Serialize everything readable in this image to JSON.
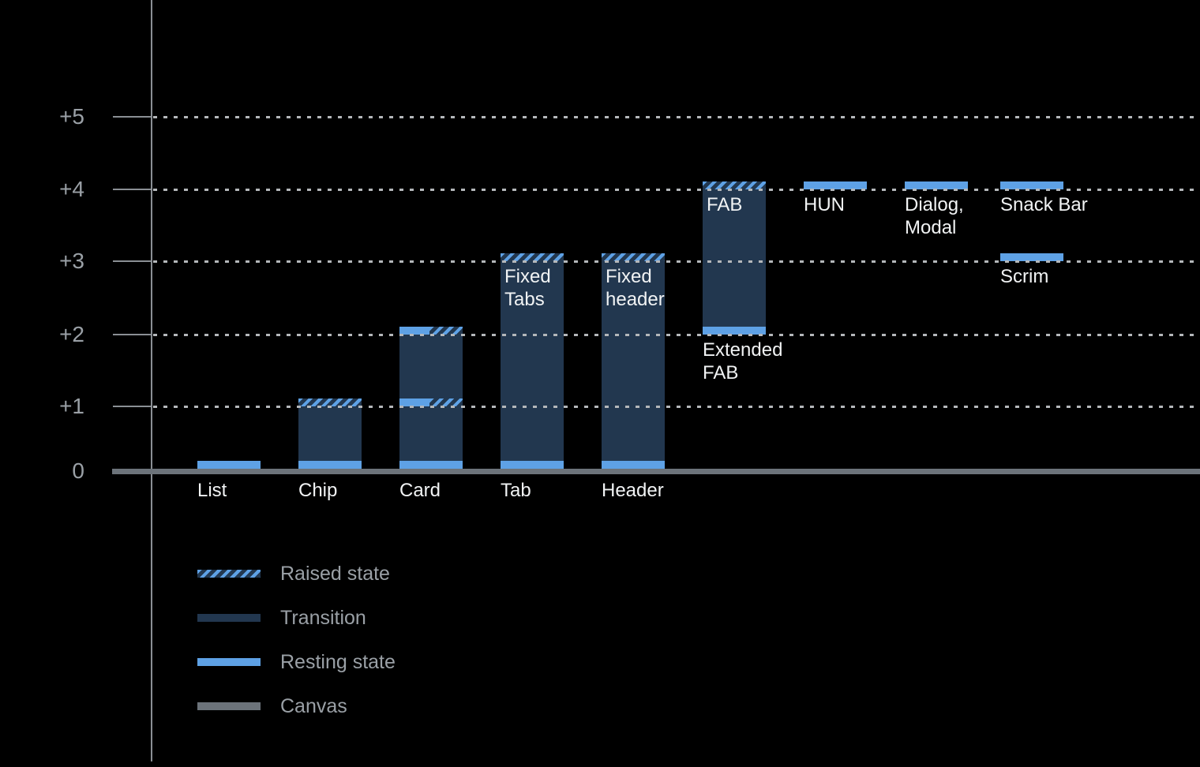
{
  "colors": {
    "bg": "#000000",
    "resting": "#5EA1E5",
    "transition": "#22374F",
    "canvas": "#6C737A",
    "axis": "#8A8F94",
    "grid": "#B4B7BA",
    "muted": "#9AA0A6",
    "label": "#F1F3F4"
  },
  "chart_data": {
    "type": "bar",
    "title": "",
    "xlabel": "",
    "ylabel": "",
    "ylim": [
      0,
      5.5
    ],
    "grid": "dotted horizontal lines at each elevation level, drawn over bars",
    "legend_position": "bottom-left",
    "y_ticks": [
      {
        "label": "+5",
        "value": 5
      },
      {
        "label": "+4",
        "value": 4
      },
      {
        "label": "+3",
        "value": 3
      },
      {
        "label": "+2",
        "value": 2
      },
      {
        "label": "+1",
        "value": 1
      },
      {
        "label": "0",
        "value": 0
      }
    ],
    "legend": [
      {
        "label": "Raised state",
        "style": "raised"
      },
      {
        "label": "Transition",
        "style": "transition"
      },
      {
        "label": "Resting state",
        "style": "resting"
      },
      {
        "label": "Canvas",
        "style": "canvas"
      }
    ],
    "components": [
      {
        "name": "List",
        "bottom": 0,
        "top": 0.1,
        "segments": [
          {
            "level": 0,
            "style": "resting"
          }
        ],
        "axis_label": "List"
      },
      {
        "name": "Chip",
        "bottom": 0,
        "top": 1.1,
        "segments": [
          {
            "level": 0,
            "style": "resting"
          },
          {
            "level": 1,
            "style": "raised"
          }
        ],
        "axis_label": "Chip"
      },
      {
        "name": "Card",
        "bottom": 0,
        "top": 2.1,
        "segments": [
          {
            "level": 0,
            "style": "resting"
          },
          {
            "level": 1,
            "style": "split"
          },
          {
            "level": 2,
            "style": "split"
          }
        ],
        "axis_label": "Card"
      },
      {
        "name": "Tab",
        "bottom": 0,
        "top": 3.1,
        "segments": [
          {
            "level": 0,
            "style": "resting"
          },
          {
            "level": 3,
            "style": "raised"
          }
        ],
        "axis_label": "Tab",
        "inner_label_lines": [
          "Fixed",
          "Tabs"
        ]
      },
      {
        "name": "Header",
        "bottom": 0,
        "top": 3.1,
        "segments": [
          {
            "level": 0,
            "style": "resting"
          },
          {
            "level": 3,
            "style": "raised"
          }
        ],
        "axis_label": "Header",
        "inner_label_lines": [
          "Fixed",
          "header"
        ]
      },
      {
        "name": "Extended FAB",
        "bottom": 2,
        "top": 4.1,
        "segments": [
          {
            "level": 2,
            "style": "resting"
          },
          {
            "level": 4,
            "style": "raised"
          }
        ],
        "inner_label_lines": [
          "FAB"
        ],
        "below_label_lines": [
          "Extended",
          "FAB"
        ]
      },
      {
        "name": "HUN",
        "bottom": 4,
        "top": 4.1,
        "segments": [
          {
            "level": 4,
            "style": "resting"
          }
        ],
        "below_label_lines": [
          "HUN"
        ]
      },
      {
        "name": "Dialog, Modal",
        "bottom": 4,
        "top": 4.1,
        "segments": [
          {
            "level": 4,
            "style": "resting"
          }
        ],
        "below_label_lines": [
          "Dialog,",
          "Modal"
        ]
      },
      {
        "name": "Snack Bar",
        "bottom": 4,
        "top": 4.1,
        "segments": [
          {
            "level": 4,
            "style": "resting"
          }
        ],
        "below_label_lines": [
          "Snack Bar"
        ]
      },
      {
        "name": "Scrim",
        "bottom": 3,
        "top": 3.1,
        "segments": [
          {
            "level": 3,
            "style": "resting"
          }
        ],
        "below_label_lines": [
          "Scrim"
        ]
      }
    ]
  }
}
